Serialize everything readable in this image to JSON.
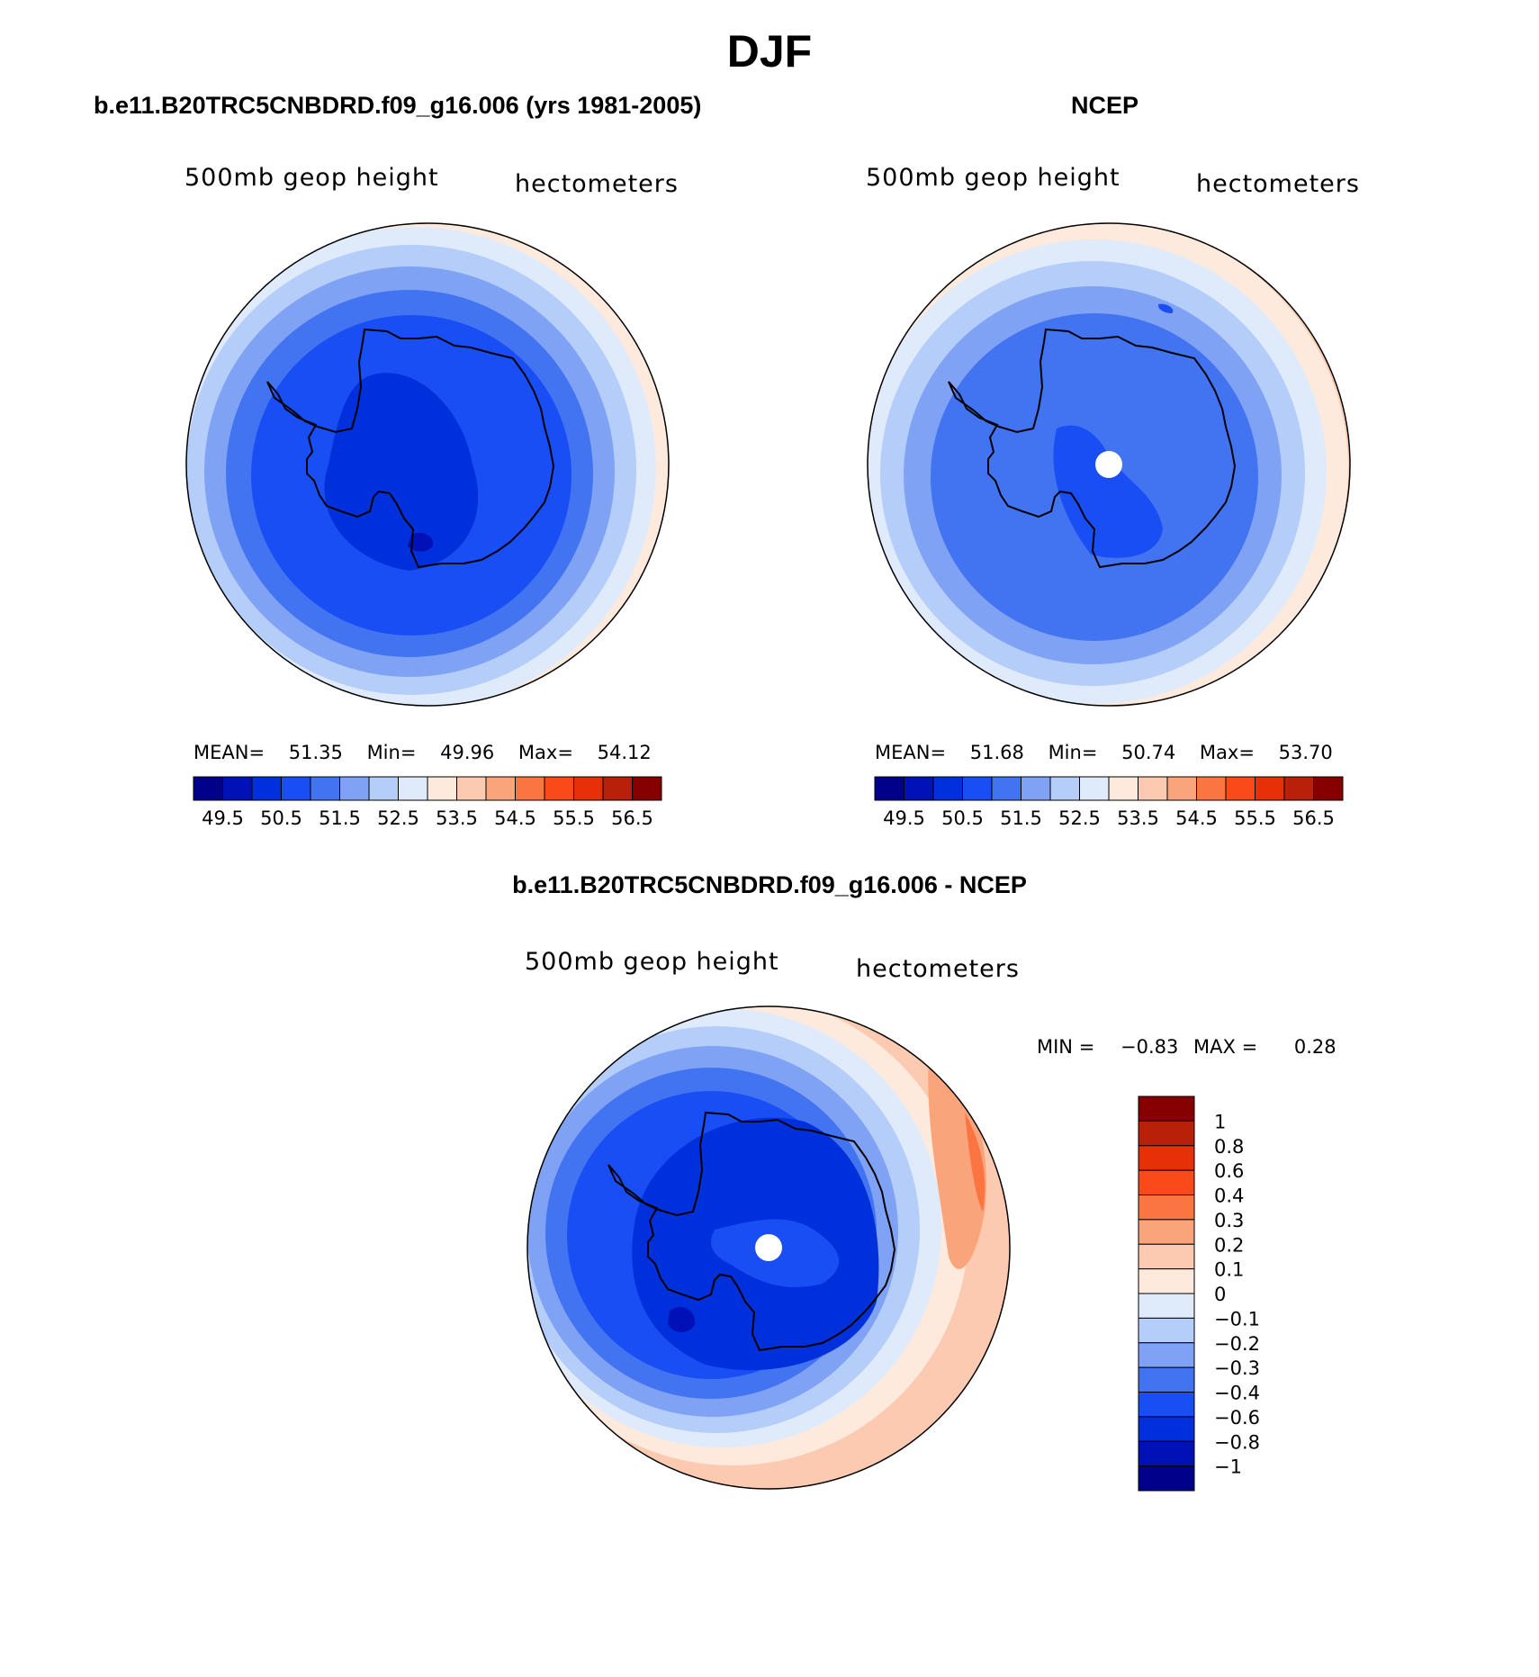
{
  "page_title": "DJF",
  "panels": [
    {
      "caption": "b.e11.B20TRC5CNBDRD.f09_g16.006 (yrs 1981-2005)",
      "field_label": "500mb geop height",
      "units_label": "hectometers",
      "stats": {
        "mean_label": "MEAN=",
        "mean": "51.35",
        "min_label": "Min=",
        "min": "49.96",
        "max_label": "Max=",
        "max": "54.12"
      }
    },
    {
      "caption": "NCEP",
      "field_label": "500mb geop height",
      "units_label": "hectometers",
      "stats": {
        "mean_label": "MEAN=",
        "mean": "51.68",
        "min_label": "Min=",
        "min": "50.74",
        "max_label": "Max=",
        "max": "53.70"
      }
    },
    {
      "caption": "b.e11.B20TRC5CNBDRD.f09_g16.006 - NCEP",
      "field_label": "500mb geop height",
      "units_label": "hectometers",
      "stats": {
        "min_label": "MIN =",
        "min": "−0.83",
        "max_label": "MAX =",
        "max": "0.28"
      }
    }
  ],
  "colorbar_abs": {
    "colors": [
      "#00008a",
      "#0012b5",
      "#0030dc",
      "#1a4ef5",
      "#4274f2",
      "#7fa2f5",
      "#b4cdf9",
      "#dfebfb",
      "#fdeadd",
      "#fccab0",
      "#faa47c",
      "#fb7543",
      "#fa4a1a",
      "#e53008",
      "#b8200a",
      "#870000"
    ],
    "labels": [
      "49.5",
      "50.5",
      "51.5",
      "52.5",
      "53.5",
      "54.5",
      "55.5",
      "56.5"
    ]
  },
  "colorbar_diff": {
    "colors": [
      "#870000",
      "#b8200a",
      "#e53008",
      "#fa4a1a",
      "#fb7543",
      "#faa47c",
      "#fccab0",
      "#fdeadd",
      "#dfebfb",
      "#b4cdf9",
      "#7fa2f5",
      "#4274f2",
      "#1a4ef5",
      "#0030dc",
      "#0012b5",
      "#00008a"
    ],
    "labels": [
      "1",
      "0.8",
      "0.6",
      "0.4",
      "0.3",
      "0.2",
      "0.1",
      "0",
      "−0.1",
      "−0.2",
      "−0.3",
      "−0.4",
      "−0.6",
      "−0.8",
      "−1"
    ]
  }
}
